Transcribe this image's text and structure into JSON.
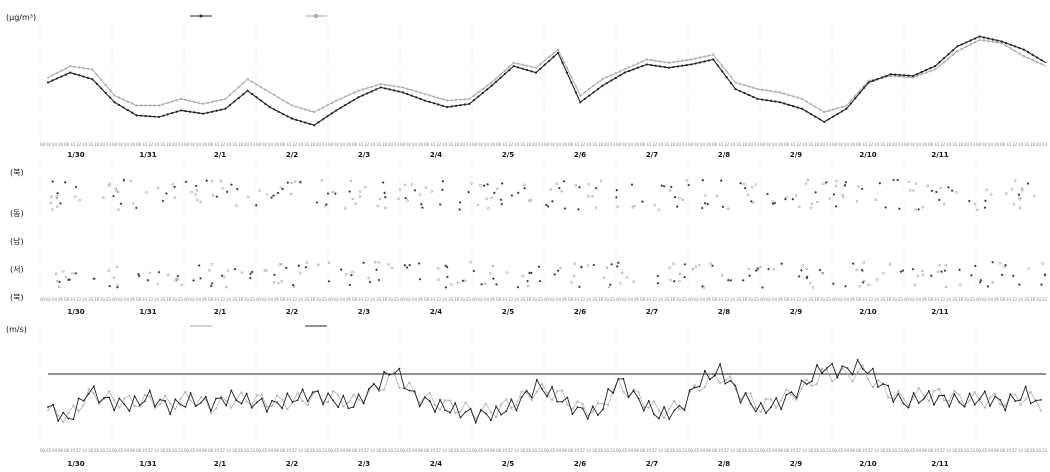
{
  "chart_data": [
    {
      "type": "line",
      "ylabel": "(μg/m³)",
      "x_labels": [
        "1/30",
        "1/31",
        "2/1",
        "2/2",
        "2/3",
        "2/4",
        "2/5",
        "2/6",
        "2/7",
        "2/8",
        "2/9",
        "2/10",
        "2/11"
      ],
      "series": [
        {
          "dark": true,
          "values": [
            60,
            66,
            62,
            48,
            40,
            39,
            43,
            41,
            44,
            55,
            45,
            38,
            34,
            43,
            51,
            57,
            54,
            49,
            45,
            47,
            58,
            70,
            66,
            78,
            48,
            58,
            66,
            71,
            69,
            71,
            74,
            56,
            50,
            48,
            44,
            36,
            44,
            60,
            65,
            64,
            70,
            82,
            88,
            85,
            80,
            72
          ]
        },
        {
          "dark": false,
          "values": [
            63,
            70,
            68,
            52,
            46,
            46,
            50,
            47,
            50,
            62,
            54,
            46,
            42,
            49,
            55,
            59,
            57,
            53,
            49,
            50,
            60,
            72,
            69,
            80,
            52,
            62,
            68,
            74,
            72,
            74,
            77,
            60,
            56,
            54,
            50,
            42,
            46,
            61,
            64,
            63,
            68,
            79,
            86,
            84,
            76,
            70
          ]
        }
      ]
    },
    {
      "type": "scatter",
      "x_labels": [
        "1/30",
        "1/31",
        "2/1",
        "2/2",
        "2/3",
        "2/4",
        "2/5",
        "2/6",
        "2/7",
        "2/8",
        "2/9",
        "2/10",
        "2/11"
      ],
      "rows": [
        {
          "label": "(북)"
        },
        {
          "label": "(동)"
        },
        {
          "label": "(남)"
        },
        {
          "label": "(서)"
        },
        {
          "label": "(북)"
        }
      ]
    },
    {
      "type": "line",
      "ylabel": "(m/s)",
      "x_labels": [
        "1/30",
        "1/31",
        "2/1",
        "2/2",
        "2/3",
        "2/4",
        "2/5",
        "2/6",
        "2/7",
        "2/8",
        "2/9",
        "2/10",
        "2/11"
      ],
      "reference_line": 4,
      "series": [
        {
          "dark": true,
          "values": [
            2.0,
            1.2,
            3.0,
            2.3,
            2.1,
            2.6,
            2.0,
            2.4,
            2.2,
            2.6,
            2.3,
            2.1,
            2.5,
            2.8,
            2.4,
            2.1,
            3.2,
            4.3,
            2.6,
            2.1,
            1.8,
            1.5,
            1.6,
            2.2,
            3.3,
            2.6,
            1.8,
            1.6,
            3.7,
            2.4,
            1.5,
            1.8,
            3.6,
            4.2,
            2.7,
            1.8,
            2.3,
            3.2,
            4.4,
            4.2,
            4.5,
            3.3,
            2.2,
            2.6,
            2.5,
            2.3,
            2.6,
            2.2,
            2.8,
            1.9
          ]
        },
        {
          "dark": false,
          "values": [
            1.8,
            1.4,
            2.7,
            2.5,
            2.3,
            2.4,
            2.2,
            2.6,
            2.0,
            2.4,
            2.5,
            2.3,
            2.3,
            2.6,
            2.6,
            2.3,
            3.0,
            3.8,
            2.8,
            2.3,
            2.0,
            1.7,
            1.8,
            2.4,
            3.0,
            2.8,
            2.0,
            1.8,
            3.3,
            2.6,
            1.7,
            2.0,
            3.3,
            3.9,
            2.9,
            2.0,
            2.5,
            3.0,
            4.0,
            3.9,
            4.1,
            3.1,
            2.4,
            2.8,
            2.7,
            2.5,
            2.4,
            2.4,
            2.6,
            2.1
          ]
        }
      ]
    }
  ]
}
